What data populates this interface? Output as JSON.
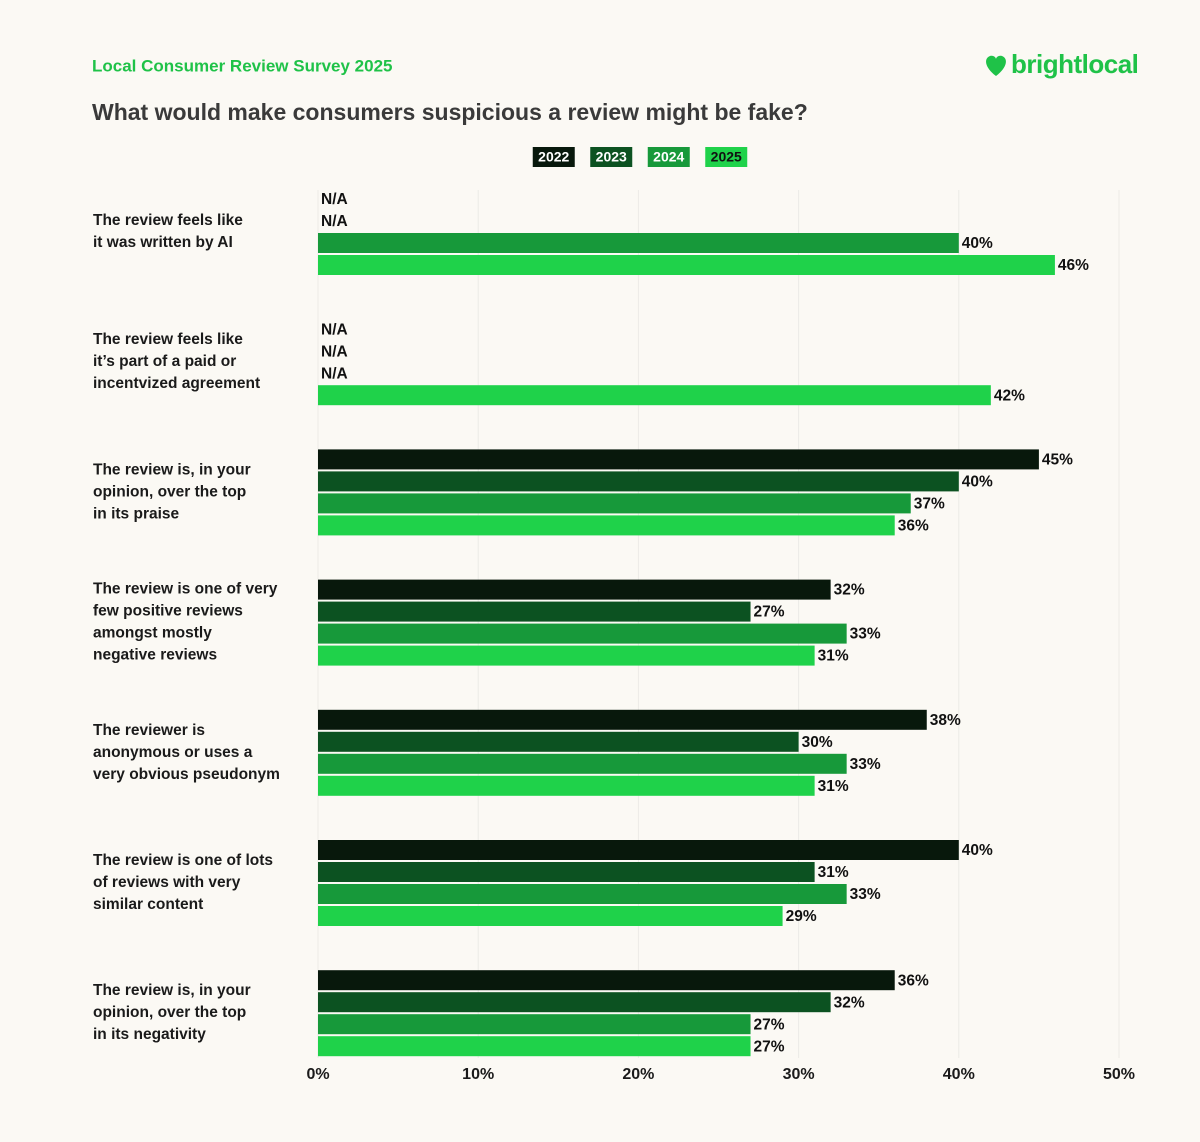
{
  "logo": "brightlocal",
  "chart_data": {
    "type": "hbar",
    "subtitle": "Local Consumer Review Survey 2025",
    "title": "What would make consumers suspicious a review might be fake?",
    "categories": [
      "The review feels like\nit was written by AI",
      "The review feels like\nit’s part of a paid or\nincentvized agreement",
      "The review is, in your\nopinion, over the top\nin its praise",
      "The review is one of very\nfew positive reviews\namongst mostly\nnegative reviews",
      "The reviewer is\nanonymous or uses a\nvery obvious pseudonym",
      "The review is one of lots\nof reviews with very\nsimilar content",
      "The review is, in your\nopinion, over the top\nin its negativity"
    ],
    "series": [
      {
        "name": "2022",
        "color": "#08180c",
        "values": [
          null,
          null,
          45,
          32,
          38,
          40,
          36
        ],
        "value_labels": [
          "N/A",
          "N/A",
          "45%",
          "32%",
          "38%",
          "40%",
          "36%"
        ]
      },
      {
        "name": "2023",
        "color": "#0c5221",
        "values": [
          null,
          null,
          40,
          27,
          30,
          31,
          32
        ],
        "value_labels": [
          "N/A",
          "N/A",
          "40%",
          "27%",
          "30%",
          "31%",
          "32%"
        ]
      },
      {
        "name": "2024",
        "color": "#17993a",
        "values": [
          40,
          null,
          37,
          33,
          33,
          33,
          27
        ],
        "value_labels": [
          "40%",
          "N/A",
          "37%",
          "33%",
          "33%",
          "33%",
          "27%"
        ]
      },
      {
        "name": "2025",
        "color": "#1fd24a",
        "values": [
          46,
          42,
          36,
          31,
          31,
          29,
          27
        ],
        "value_labels": [
          "46%",
          "42%",
          "36%",
          "31%",
          "31%",
          "29%",
          "27%"
        ]
      }
    ],
    "xlim": [
      0,
      50
    ],
    "xticks": [
      {
        "value": 0,
        "label": "0%"
      },
      {
        "value": 10,
        "label": "10%"
      },
      {
        "value": 20,
        "label": "20%"
      },
      {
        "value": 30,
        "label": "30%"
      },
      {
        "value": 40,
        "label": "40%"
      },
      {
        "value": 50,
        "label": "50%"
      }
    ],
    "grid": true
  }
}
